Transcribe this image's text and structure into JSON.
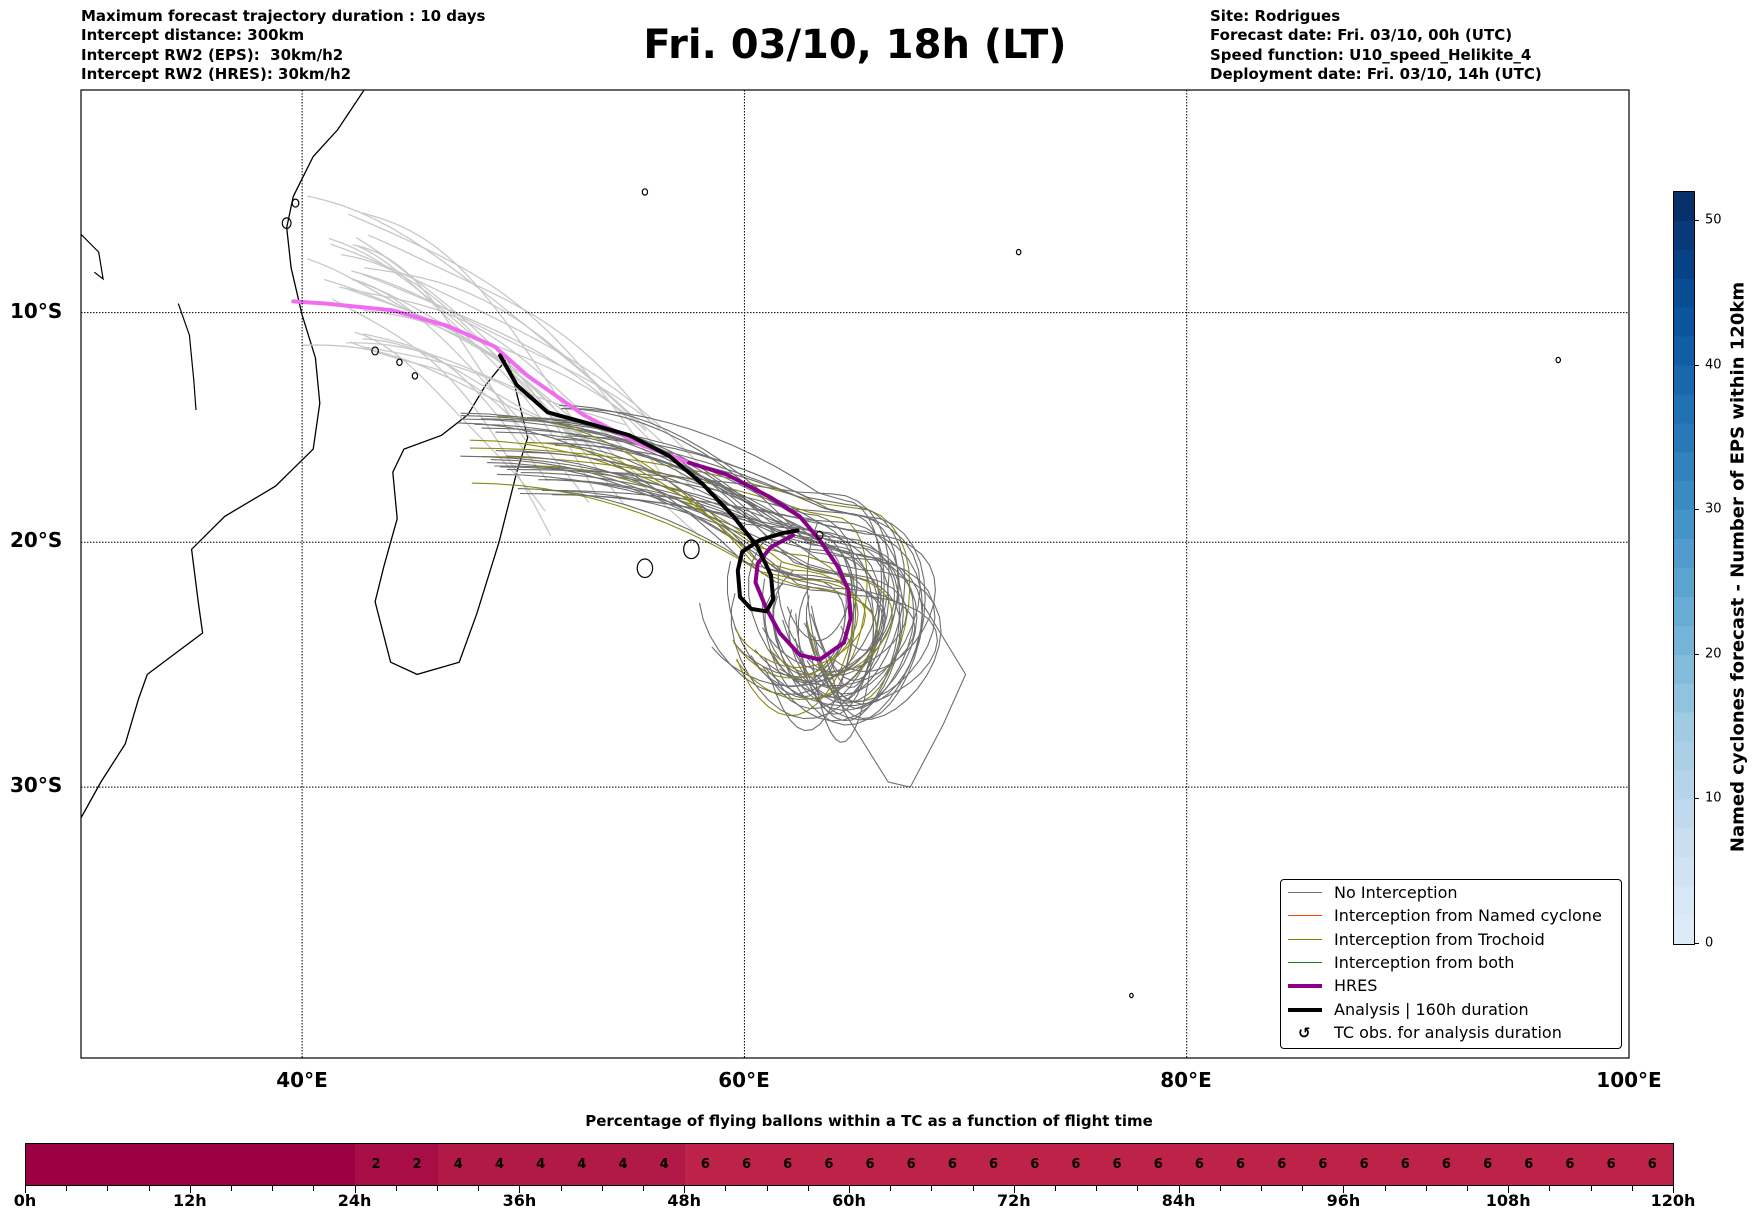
{
  "header": {
    "left": [
      "Maximum forecast trajectory duration : 10 days",
      "Intercept distance: 300km",
      "Intercept RW2 (EPS):  30km/h2",
      "Intercept RW2 (HRES): 30km/h2"
    ],
    "title": "Fri. 03/10, 18h (LT)",
    "right": [
      "Site: Rodrigues",
      "Forecast date: Fri. 03/10, 00h (UTC)",
      "Speed function: U10_speed_Helikite_4",
      "Deployment date: Fri. 03/10, 14h (UTC)"
    ]
  },
  "chart_data": [
    {
      "type": "line",
      "title": "Fri. 03/10, 18h (LT)",
      "projection": "mercator",
      "xlim": [
        30,
        100
      ],
      "ylim": [
        -40,
        0
      ],
      "x_ticks": [
        "40°E",
        "60°E",
        "80°E",
        "100°E"
      ],
      "x_tick_values": [
        40,
        60,
        80,
        100
      ],
      "y_ticks": [
        "10°S",
        "20°S",
        "30°S"
      ],
      "y_tick_values": [
        -10,
        -20,
        -30
      ],
      "grid": true,
      "legend_position": "bottom-right",
      "legend": [
        {
          "label": "No Interception",
          "color": "#6e6e6e"
        },
        {
          "label": "Interception from Named cyclone",
          "color": "#ff4500"
        },
        {
          "label": "Interception from Trochoid",
          "color": "#808000"
        },
        {
          "label": "Interception from both",
          "color": "#1a7a1a"
        },
        {
          "label": "HRES",
          "color": "#8b008b"
        },
        {
          "label": "Analysis | 160h duration",
          "color": "#000000"
        },
        {
          "label": "TC obs. for analysis duration",
          "icon": "rotate-arrow-icon"
        }
      ],
      "series": [
        {
          "name": "HRES (before deployment)",
          "color": "#f06cf0",
          "points": [
            [
              39.6,
              -9.5
            ],
            [
              41.1,
              -9.6
            ],
            [
              44.1,
              -9.9
            ],
            [
              46.6,
              -10.6
            ],
            [
              48.7,
              -11.5
            ],
            [
              50.2,
              -12.8
            ],
            [
              52.7,
              -14.5
            ],
            [
              55.3,
              -15.8
            ],
            [
              57.5,
              -16.6
            ]
          ]
        },
        {
          "name": "HRES",
          "color": "#8b008b",
          "points": [
            [
              57.5,
              -16.6
            ],
            [
              59.2,
              -17.1
            ],
            [
              61.2,
              -18.1
            ],
            [
              62.5,
              -18.9
            ],
            [
              63.4,
              -19.9
            ],
            [
              64.2,
              -21.0
            ],
            [
              64.7,
              -22.0
            ],
            [
              64.8,
              -23.2
            ],
            [
              64.5,
              -24.2
            ],
            [
              63.4,
              -24.9
            ],
            [
              62.5,
              -24.7
            ],
            [
              61.6,
              -23.8
            ],
            [
              61.0,
              -22.8
            ],
            [
              60.5,
              -21.7
            ],
            [
              60.6,
              -20.9
            ],
            [
              61.2,
              -20.2
            ],
            [
              62.2,
              -19.7
            ]
          ]
        },
        {
          "name": "Analysis",
          "color": "#000000",
          "points": [
            [
              48.95,
              -11.9
            ],
            [
              49.7,
              -13.2
            ],
            [
              51.1,
              -14.4
            ],
            [
              53.0,
              -14.9
            ],
            [
              54.8,
              -15.4
            ],
            [
              56.6,
              -16.3
            ],
            [
              58.1,
              -17.5
            ],
            [
              59.5,
              -18.9
            ],
            [
              60.6,
              -20.2
            ],
            [
              61.2,
              -21.4
            ],
            [
              61.3,
              -22.4
            ],
            [
              61.0,
              -22.9
            ],
            [
              60.3,
              -22.8
            ],
            [
              59.8,
              -22.3
            ],
            [
              59.7,
              -21.2
            ],
            [
              59.9,
              -20.4
            ],
            [
              60.7,
              -19.9
            ],
            [
              61.8,
              -19.6
            ],
            [
              62.4,
              -19.5
            ]
          ]
        }
      ]
    },
    {
      "type": "colorbar",
      "label": "Named cyclones forecast - Number of EPS within 120km",
      "ticks": [
        "0",
        "10",
        "20",
        "30",
        "40",
        "50"
      ],
      "tick_values": [
        0,
        10,
        20,
        30,
        40,
        50
      ],
      "range": [
        0,
        52
      ],
      "colormap": "Blues"
    },
    {
      "type": "heatmap",
      "title": "Percentage of flying ballons within a TC as a function of flight time",
      "x_ticks": [
        "0h",
        "12h",
        "24h",
        "36h",
        "48h",
        "60h",
        "72h",
        "84h",
        "96h",
        "108h",
        "120h"
      ],
      "step_hours": 3,
      "values": [
        0,
        0,
        0,
        0,
        0,
        0,
        0,
        0,
        2,
        2,
        4,
        4,
        4,
        4,
        4,
        4,
        6,
        6,
        6,
        6,
        6,
        6,
        6,
        6,
        6,
        6,
        6,
        6,
        6,
        6,
        6,
        6,
        6,
        6,
        6,
        6,
        6,
        6,
        6,
        6
      ],
      "colors": {
        "0": "#9e0142",
        "2": "#a80d45",
        "4": "#b11a47",
        "6": "#bd2249"
      }
    }
  ]
}
